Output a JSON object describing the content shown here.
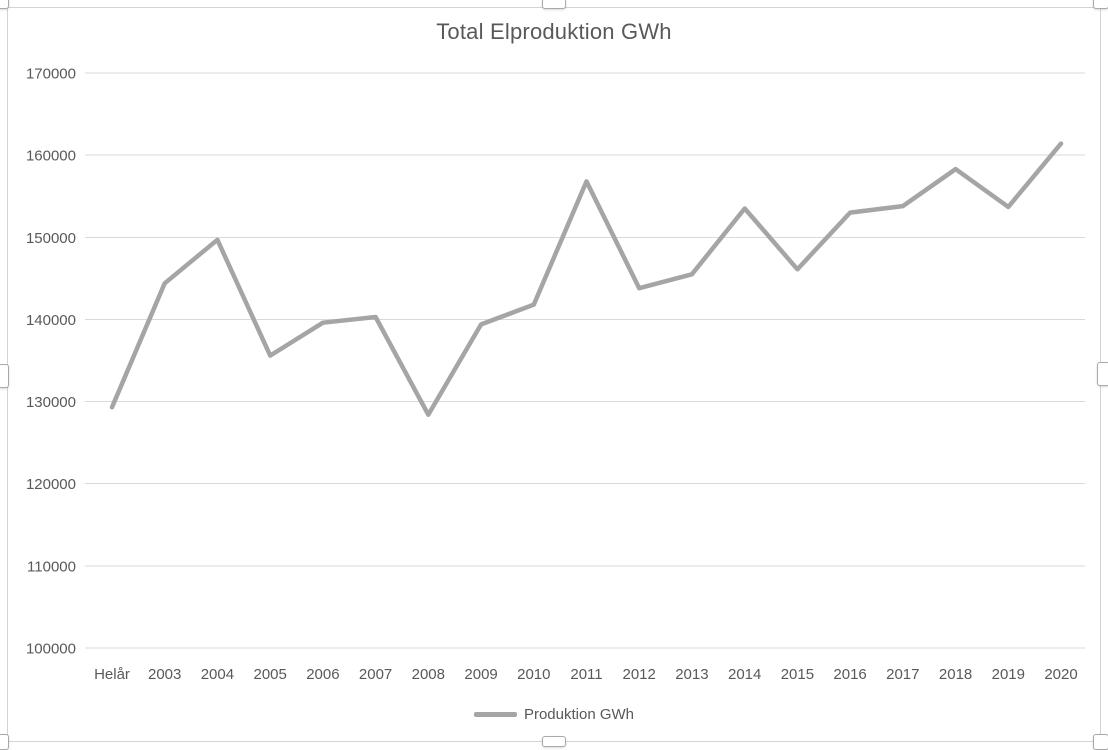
{
  "chart": {
    "title": "Total Elproduktion GWh",
    "legend": {
      "label": "Produktion GWh"
    },
    "colors": {
      "series_line": "#a5a5a5",
      "gridline": "#d9d9d9",
      "axis_text": "#595959",
      "title_text": "#595959",
      "frame_border": "#d3d3d3",
      "handle_border": "#a9a9a9"
    }
  },
  "chart_data": {
    "type": "line",
    "title": "Total Elproduktion GWh",
    "categories": [
      "Helår",
      "2003",
      "2004",
      "2005",
      "2006",
      "2007",
      "2008",
      "2009",
      "2010",
      "2011",
      "2012",
      "2013",
      "2014",
      "2015",
      "2016",
      "2017",
      "2018",
      "2019",
      "2020"
    ],
    "series": [
      {
        "name": "Produktion GWh",
        "values": [
          129300,
          144400,
          149700,
          135600,
          139600,
          140300,
          128400,
          139400,
          141800,
          156800,
          143800,
          145500,
          153500,
          146100,
          153000,
          153800,
          158300,
          153700,
          161400
        ]
      }
    ],
    "xlabel": "",
    "ylabel": "",
    "ylim": [
      100000,
      170000
    ],
    "yticks": [
      100000,
      110000,
      120000,
      130000,
      140000,
      150000,
      160000,
      170000
    ],
    "grid": true,
    "legend_position": "bottom"
  }
}
